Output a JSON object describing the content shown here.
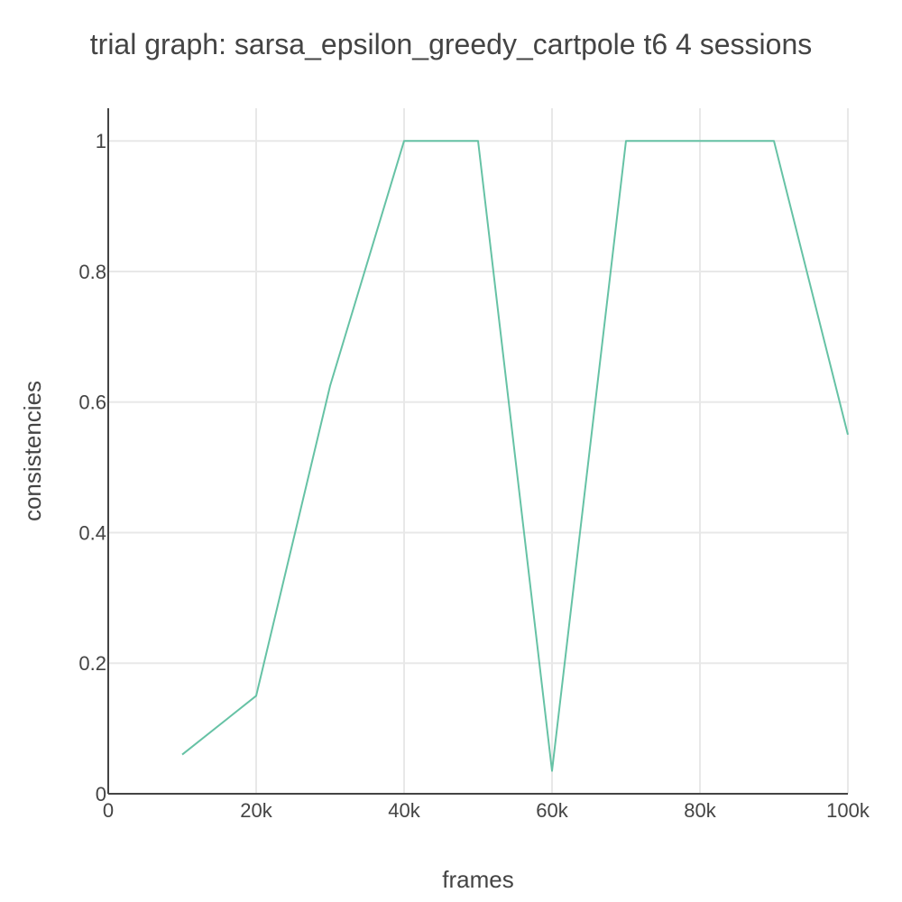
{
  "chart_data": {
    "type": "line",
    "title": "trial graph: sarsa_epsilon_greedy_cartpole t6 4 sessions",
    "xlabel": "frames",
    "ylabel": "consistencies",
    "x_tick_values": [
      0,
      20000,
      40000,
      60000,
      80000,
      100000
    ],
    "x_tick_labels": [
      "0",
      "20k",
      "40k",
      "60k",
      "80k",
      "100k"
    ],
    "y_tick_values": [
      0,
      0.2,
      0.4,
      0.6,
      0.8,
      1
    ],
    "y_tick_labels": [
      "0",
      "0.2",
      "0.4",
      "0.6",
      "0.8",
      "1"
    ],
    "xlim": [
      0,
      100000
    ],
    "ylim": [
      0,
      1.05
    ],
    "grid": true,
    "legend": "none",
    "series": [
      {
        "color": "#66c2a5",
        "x": [
          10000,
          20000,
          30000,
          40000,
          50000,
          60000,
          70000,
          80000,
          90000,
          100000
        ],
        "y": [
          0.06,
          0.15,
          0.625,
          1,
          1,
          0.035,
          1,
          1,
          1,
          0.55
        ]
      }
    ]
  }
}
